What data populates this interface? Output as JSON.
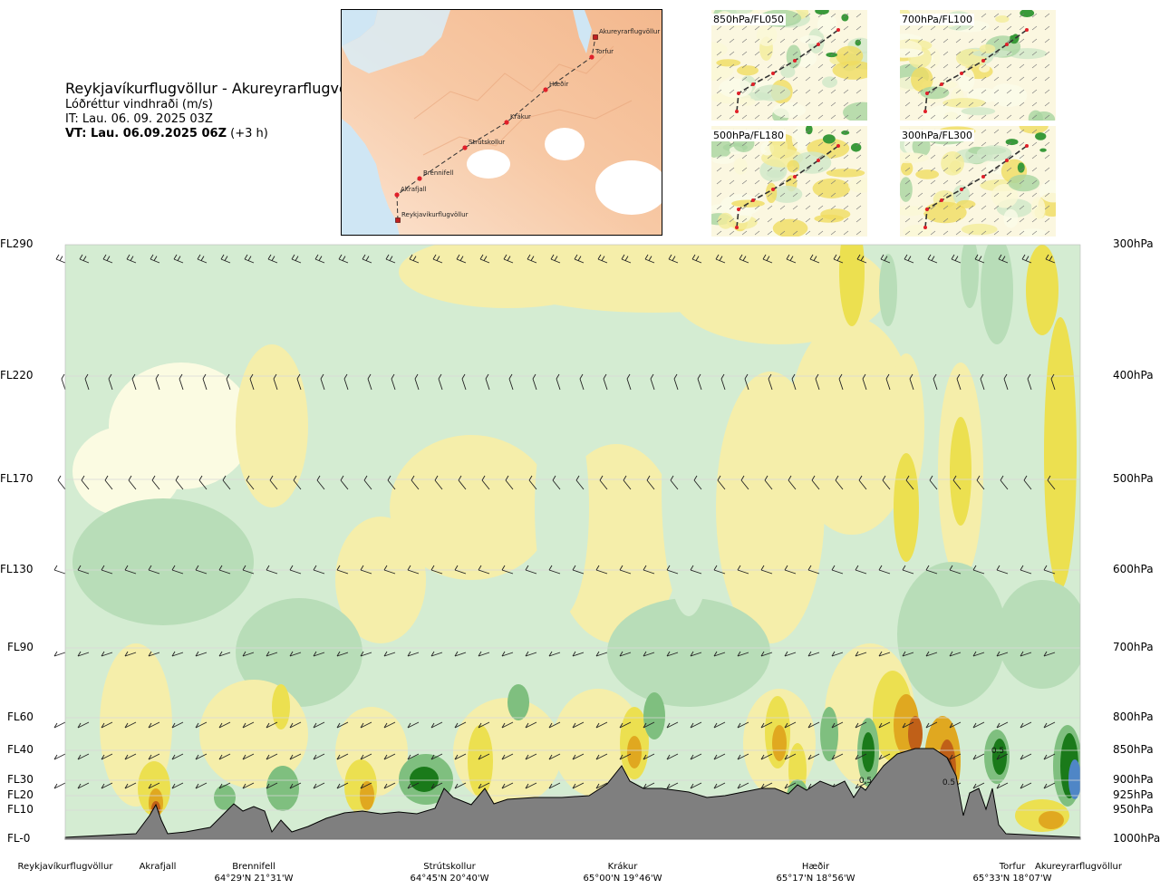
{
  "header": {
    "title": "Reykjavíkurflugvöllur - Akureyrarflugvöllur",
    "subtitle": "Lóðréttur vindhraði (m/s)",
    "issue_time": "IT: Lau. 06. 09. 2025 03Z",
    "valid_time_bold": "VT: Lau. 06.09.2025 06Z",
    "valid_time_offset": " (+3 h)"
  },
  "route_map": {
    "waypoints": [
      "Akureyrarflugvöllur",
      "Torfur",
      "Hæðir",
      "Krákur",
      "Strútskollur",
      "Brennifell",
      "Akrafjall",
      "Reykjavíkurflugvöllur"
    ],
    "colors": {
      "land": "#f6c9a8",
      "water": "#cfe6f4",
      "route": "#333333",
      "point": "#e0202a"
    }
  },
  "mini_maps": [
    {
      "label": "850hPa/FL050"
    },
    {
      "label": "700hPa/FL100"
    },
    {
      "label": "500hPa/FL180"
    },
    {
      "label": "300hPa/FL300"
    }
  ],
  "chart_data": {
    "type": "heatmap",
    "title": "Lóðréttur vindhraði (m/s)",
    "levels_left": [
      "FL290",
      "FL220",
      "FL170",
      "FL130",
      "FL90",
      "FL60",
      "FL40",
      "FL30",
      "FL20",
      "FL10",
      "FL-0"
    ],
    "levels_right": [
      "300hPa",
      "400hPa",
      "500hPa",
      "600hPa",
      "700hPa",
      "800hPa",
      "850hPa",
      "900hPa",
      "925hPa",
      "950hPa",
      "1000hPa"
    ],
    "waypoints": [
      {
        "name": "Reykjavíkurflugvöllur",
        "coord": ""
      },
      {
        "name": "Akrafjall",
        "coord": ""
      },
      {
        "name": "Brennifell",
        "coord": "64°29'N 21°31'W"
      },
      {
        "name": "Strútskollur",
        "coord": "64°45'N 20°40'W"
      },
      {
        "name": "Krákur",
        "coord": "65°00'N 19°46'W"
      },
      {
        "name": "Hæðir",
        "coord": "65°17'N 18°56'W"
      },
      {
        "name": "Torfur",
        "coord": "65°33'N 18°07'W"
      },
      {
        "name": "Akureyrarflugvöllur",
        "coord": ""
      }
    ],
    "contour_labels": [
      "0.5",
      "0.5",
      "0.5"
    ],
    "colors": {
      "down_strong": "#1a7a1a",
      "down_mod": "#7fbf7f",
      "down_weak": "#b8ddb8",
      "down_faint": "#d4ecd2",
      "neutral": "#fbfbe2",
      "up_faint": "#f5eeaa",
      "up_weak": "#ece050",
      "up_mod": "#e0a820",
      "up_strong": "#c06018",
      "up_extreme": "#7a3a10",
      "terrain": "#7f7f7f",
      "blue": "#4f86c6"
    }
  }
}
